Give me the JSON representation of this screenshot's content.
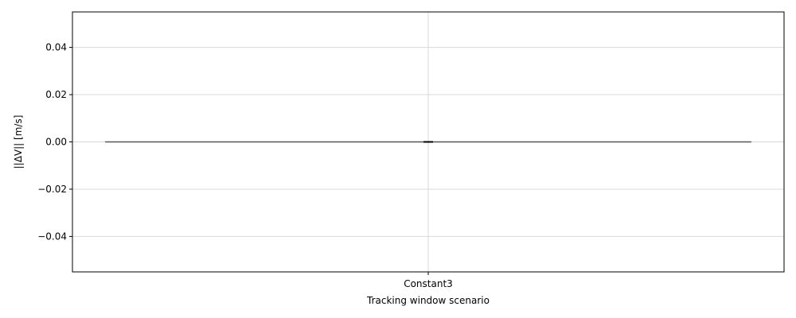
{
  "chart_data": {
    "type": "violin",
    "title": "",
    "xlabel": "Tracking window scenario",
    "ylabel": "||ΔV|| [m/s]",
    "categories": [
      "Constant3"
    ],
    "series": [
      {
        "category": "Constant3",
        "values": [
          0,
          0,
          0
        ],
        "median": 0,
        "q1": 0,
        "q3": 0,
        "min": 0,
        "max": 0
      }
    ],
    "ylim": [
      -0.055,
      0.055
    ],
    "yticks": [
      -0.04,
      -0.02,
      0.0,
      0.02,
      0.04
    ],
    "ytick_labels": [
      "−0.04",
      "−0.02",
      "0.00",
      "0.02",
      "0.04"
    ],
    "grid": true,
    "colors": {
      "body": "#1f77b4",
      "box": "#000000",
      "whisker_line": "#555555",
      "grid": "#d9d9d9"
    }
  }
}
